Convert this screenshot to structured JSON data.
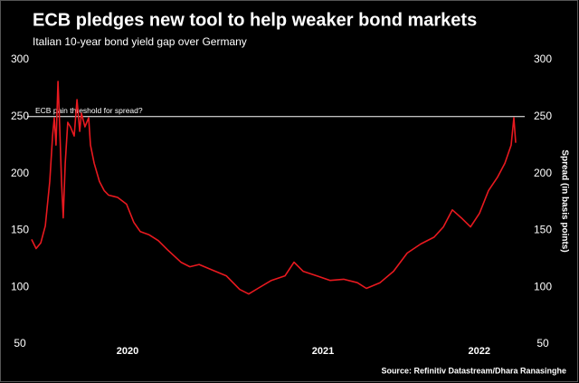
{
  "chart_data": {
    "type": "line",
    "title": "ECB pledges new tool to help weaker bond markets",
    "subtitle": "Italian 10-year bond yield gap over Germany",
    "y2_label": "Spread (in basis points)",
    "source": "Source: Refinitiv Datastream/Dhara Ranasinghe",
    "reference_line": {
      "value": 250,
      "label": "ECB pain threshold for spread?",
      "color": "#ffffff"
    },
    "xlim": [
      2020.0,
      2022.5
    ],
    "xticks": [
      {
        "value": 2020.5,
        "label": "2020"
      },
      {
        "value": 2021.5,
        "label": "2021"
      },
      {
        "value": 2022.3,
        "label": "2022"
      }
    ],
    "ylim": [
      50,
      300
    ],
    "yticks": [
      50,
      100,
      150,
      200,
      250,
      300
    ],
    "y2lim": [
      50,
      300
    ],
    "y2ticks": [
      50,
      100,
      150,
      200,
      250,
      300
    ],
    "grid": false,
    "series": [
      {
        "name": "Spread",
        "color": "#e8191f",
        "x": [
          2020.009,
          2020.032,
          2020.056,
          2020.079,
          2020.102,
          2020.116,
          2020.125,
          2020.134,
          2020.144,
          2020.153,
          2020.162,
          2020.171,
          2020.181,
          2020.194,
          2020.208,
          2020.227,
          2020.241,
          2020.255,
          2020.264,
          2020.282,
          2020.301,
          2020.31,
          2020.329,
          2020.356,
          2020.38,
          2020.403,
          2020.449,
          2020.495,
          2020.532,
          2020.565,
          2020.611,
          2020.657,
          2020.704,
          2020.773,
          2020.819,
          2020.866,
          2020.935,
          2021.005,
          2021.074,
          2021.12,
          2021.167,
          2021.236,
          2021.306,
          2021.352,
          2021.398,
          2021.468,
          2021.537,
          2021.606,
          2021.676,
          2021.722,
          2021.792,
          2021.861,
          2021.931,
          2022.0,
          2022.069,
          2022.116,
          2022.162,
          2022.208,
          2022.255,
          2022.301,
          2022.347,
          2022.394,
          2022.431,
          2022.463,
          2022.477,
          2022.486
        ],
        "values": [
          142,
          134,
          139,
          154,
          193,
          233,
          249,
          225,
          281,
          241,
          193,
          161,
          209,
          245,
          241,
          233,
          265,
          237,
          253,
          241,
          249,
          225,
          209,
          193,
          185,
          181,
          179,
          173,
          157,
          149,
          146,
          141,
          133,
          122,
          118,
          120,
          115,
          110,
          98,
          94,
          99,
          106,
          110,
          122,
          114,
          110,
          106,
          107,
          104,
          99,
          104,
          114,
          130,
          138,
          144,
          153,
          168,
          161,
          153,
          165,
          185,
          197,
          209,
          225,
          249,
          227
        ]
      }
    ]
  }
}
